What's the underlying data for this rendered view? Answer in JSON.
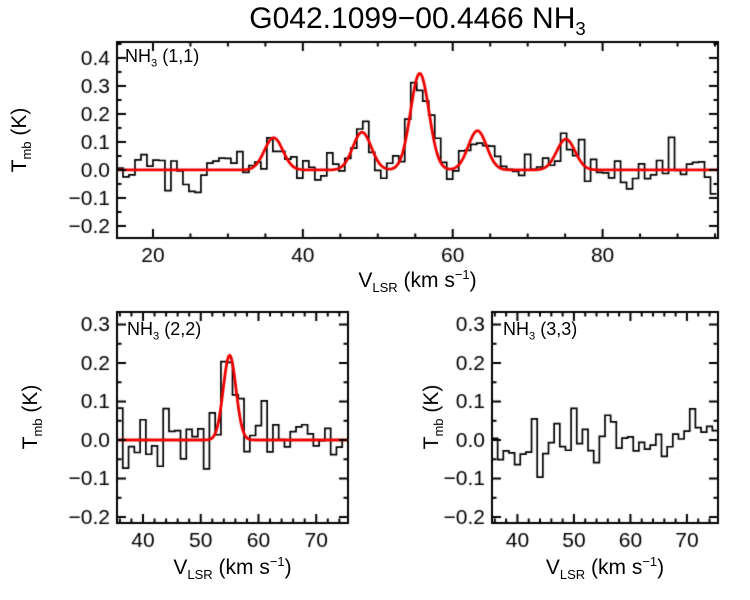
{
  "title": {
    "main": "G042.1099−00.4466 NH",
    "sub": "3"
  },
  "axis_labels": {
    "y_pre": "T",
    "y_sub": "mb",
    "y_post": " (K)",
    "x_pre": "V",
    "x_sub": "LSR",
    "x_mid": " (km s",
    "x_sup": "−1",
    "x_end": ")"
  },
  "colors": {
    "background": "#ffffff",
    "axis": "#000000",
    "data": "#000000",
    "fit": "#ee0000"
  },
  "chart_data": [
    {
      "type": "line",
      "title": "NH3 (1,1) spectrum",
      "label_pre": "NH",
      "label_sub": "3",
      "label_post": " (1,1)",
      "xlabel": "V_LSR (km s^-1)",
      "ylabel": "T_mb (K)",
      "xlim": [
        15.2,
        95.4
      ],
      "ylim": [
        -0.243,
        0.457
      ],
      "xticks": [
        20,
        40,
        60,
        80
      ],
      "xtick_labels": [
        "20",
        "40",
        "60",
        "80"
      ],
      "x_minor_step": 5,
      "yticks": [
        0.4,
        0.3,
        0.2,
        0.1,
        0.0,
        -0.1,
        -0.2
      ],
      "ytick_labels": [
        "0.4",
        "0.3",
        "0.2",
        "0.1",
        "0.0",
        "−0.1",
        "−0.2"
      ],
      "y_minor_step": 0.05,
      "grid": false,
      "legend": null,
      "channel_width": 0.8,
      "noise_rms": 0.036,
      "seed": 101,
      "baseline": 0.0,
      "has_fit": true,
      "fit_peaks": [
        {
          "center": 36.1,
          "amplitude": 0.115,
          "fwhm": 2.9
        },
        {
          "center": 47.9,
          "amplitude": 0.135,
          "fwhm": 2.9
        },
        {
          "center": 55.6,
          "amplitude": 0.345,
          "fwhm": 2.9
        },
        {
          "center": 63.3,
          "amplitude": 0.14,
          "fwhm": 2.9
        },
        {
          "center": 75.1,
          "amplitude": 0.11,
          "fwhm": 2.9
        }
      ]
    },
    {
      "type": "line",
      "title": "NH3 (2,2) spectrum",
      "label_pre": "NH",
      "label_sub": "3",
      "label_post": " (2,2)",
      "xlabel": "V_LSR (km s^-1)",
      "ylabel": "T_mb (K)",
      "xlim": [
        35.5,
        75.5
      ],
      "ylim": [
        -0.2155,
        0.3325
      ],
      "xticks": [
        40,
        50,
        60,
        70
      ],
      "xtick_labels": [
        "40",
        "50",
        "60",
        "70"
      ],
      "x_minor_step": 2,
      "yticks": [
        0.3,
        0.2,
        0.1,
        0.0,
        -0.1,
        -0.2
      ],
      "ytick_labels": [
        "0.3",
        "0.2",
        "0.1",
        "0.0",
        "−0.1",
        "−0.2"
      ],
      "y_minor_step": 0.05,
      "grid": false,
      "legend": null,
      "channel_width": 1.0,
      "noise_rms": 0.042,
      "seed": 202,
      "baseline": 0.0,
      "has_fit": true,
      "fit_peaks": [
        {
          "center": 55.0,
          "amplitude": 0.22,
          "fwhm": 2.6
        }
      ]
    },
    {
      "type": "line",
      "title": "NH3 (3,3) spectrum",
      "label_pre": "NH",
      "label_sub": "3",
      "label_post": " (3,3)",
      "xlabel": "V_LSR (km s^-1)",
      "ylabel": "T_mb (K)",
      "xlim": [
        35.5,
        75.5
      ],
      "ylim": [
        -0.2155,
        0.3325
      ],
      "xticks": [
        40,
        50,
        60,
        70
      ],
      "xtick_labels": [
        "40",
        "50",
        "60",
        "70"
      ],
      "x_minor_step": 2,
      "yticks": [
        0.3,
        0.2,
        0.1,
        0.0,
        -0.1,
        -0.2
      ],
      "ytick_labels": [
        "0.3",
        "0.2",
        "0.1",
        "0.0",
        "−0.1",
        "−0.2"
      ],
      "y_minor_step": 0.05,
      "grid": false,
      "legend": null,
      "channel_width": 1.0,
      "noise_rms": 0.035,
      "seed": 303,
      "baseline": 0.0,
      "has_fit": false,
      "fit_peaks": []
    }
  ]
}
